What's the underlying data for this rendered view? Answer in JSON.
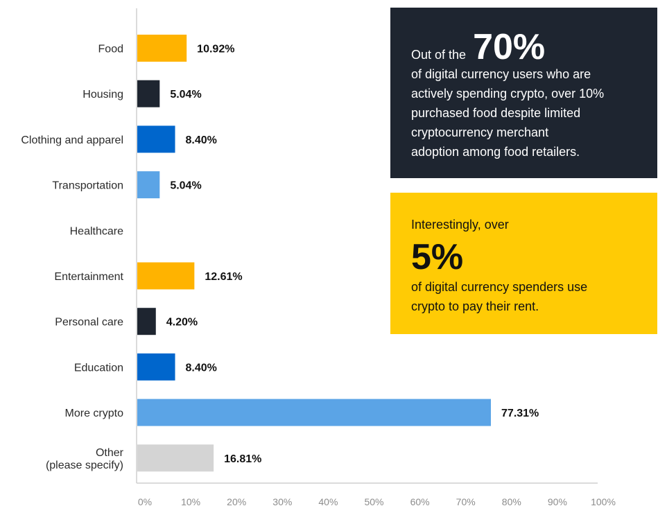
{
  "chart_data": {
    "type": "bar",
    "orientation": "horizontal",
    "categories": [
      "Food",
      "Housing",
      "Clothing and apparel",
      "Transportation",
      "Healthcare",
      "Entertainment",
      "Personal care",
      "Education",
      "More crypto",
      "Other\n(please specify)"
    ],
    "values": [
      10.92,
      5.04,
      8.4,
      5.04,
      null,
      12.61,
      4.2,
      8.4,
      77.31,
      16.81
    ],
    "value_labels": [
      "10.92%",
      "5.04%",
      "8.40%",
      "5.04%",
      "",
      "12.61%",
      "4.20%",
      "8.40%",
      "77.31%",
      "16.81%"
    ],
    "bar_colors": [
      "#ffb300",
      "#1e2530",
      "#0066cc",
      "#5ba4e6",
      "#ffffff",
      "#ffb300",
      "#1e2530",
      "#0066cc",
      "#5ba4e6",
      "#d4d4d4"
    ],
    "xlim": [
      0,
      100
    ],
    "x_ticks": [
      "0%",
      "10%",
      "20%",
      "30%",
      "40%",
      "50%",
      "60%",
      "70%",
      "80%",
      "90%",
      "100%"
    ],
    "grid": false
  },
  "callouts": {
    "dark": {
      "lead": "Out of the",
      "big": "70%",
      "body": [
        "of digital currency users who are",
        "actively spending crypto, over 10%",
        "purchased food despite limited",
        "cryptocurrency merchant",
        "adoption among food retailers."
      ]
    },
    "yellow": {
      "lead": "Interestingly, over",
      "big": "5%",
      "body": [
        "of digital currency spenders use",
        "crypto to pay their rent."
      ]
    }
  },
  "colors": {
    "dark": "#1e2530",
    "yellow": "#ffcb05",
    "orange": "#ffb300",
    "blue": "#0066cc",
    "light_blue": "#5ba4e6",
    "gray": "#d4d4d4"
  }
}
